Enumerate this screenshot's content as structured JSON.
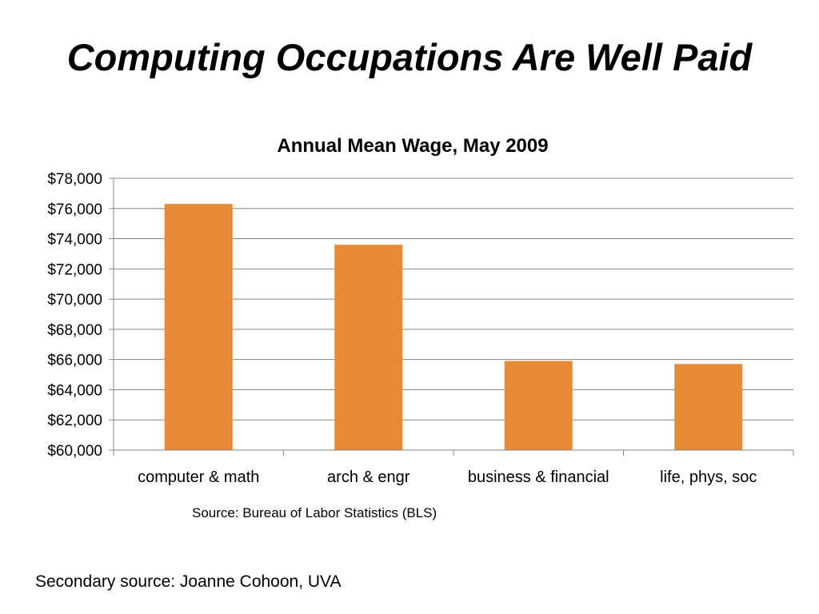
{
  "slide": {
    "title": "Computing Occupations Are Well Paid",
    "source_note": "Source: Bureau of Labor Statistics  (BLS)",
    "secondary_source": "Secondary source: Joanne Cohoon, UVA"
  },
  "chart_data": {
    "type": "bar",
    "title": "Annual Mean Wage, May 2009",
    "xlabel": "",
    "ylabel": "",
    "categories": [
      "computer & math",
      "arch & engr",
      "business & financial",
      "life, phys, soc"
    ],
    "values": [
      76300,
      73600,
      65900,
      65700
    ],
    "ylim": [
      60000,
      78000
    ],
    "yticks": [
      60000,
      62000,
      64000,
      66000,
      68000,
      70000,
      72000,
      74000,
      76000,
      78000
    ],
    "ytick_labels": [
      "$60,000",
      "$62,000",
      "$64,000",
      "$66,000",
      "$68,000",
      "$70,000",
      "$72,000",
      "$74,000",
      "$76,000",
      "$78,000"
    ],
    "bar_color": "#E78A35",
    "grid": true,
    "legend": "none"
  }
}
